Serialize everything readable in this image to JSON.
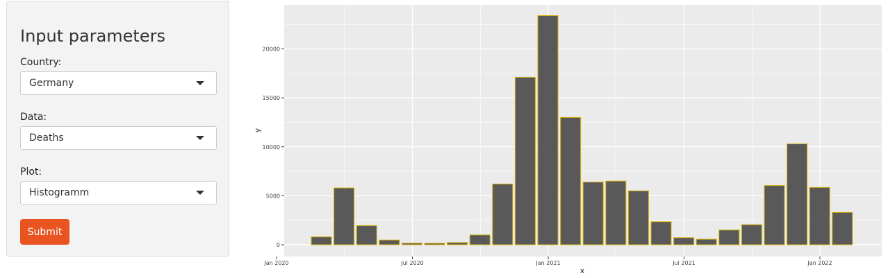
{
  "sidebar": {
    "title": "Input parameters",
    "country": {
      "label": "Country:",
      "value": "Germany"
    },
    "data": {
      "label": "Data:",
      "value": "Deaths"
    },
    "plot": {
      "label": "Plot:",
      "value": "Histogramm"
    },
    "submit_label": "Submit"
  },
  "colors": {
    "accent": "#e95420",
    "panel_bg": "#ebebeb",
    "bar_fill": "#595959",
    "bar_outline": "#d4b106",
    "grid": "#ffffff"
  },
  "chart_data": {
    "type": "bar",
    "xlabel": "x",
    "ylabel": "y",
    "x_ticks": [
      "Jan 2020",
      "Jul 2020",
      "Jan 2021",
      "Jul 2021",
      "Jan 2022"
    ],
    "y_ticks": [
      0,
      5000,
      10000,
      15000,
      20000
    ],
    "ylim": [
      0,
      24000
    ],
    "grid": true,
    "series": [
      {
        "values": [
          800,
          5800,
          1950,
          480,
          160,
          150,
          220,
          1000,
          6200,
          17100,
          23400,
          13000,
          6400,
          6500,
          5500,
          2350,
          720,
          560,
          1500,
          2050,
          6050,
          10300,
          5850,
          3300
        ]
      }
    ]
  }
}
